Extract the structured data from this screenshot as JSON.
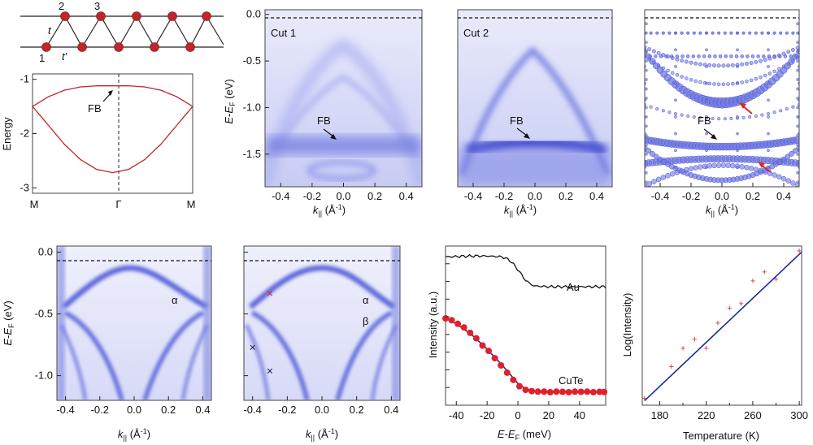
{
  "chart_data": [
    {
      "id": "lattice",
      "type": "diagram",
      "site_labels": [
        "1",
        "2",
        "3"
      ],
      "hopping_labels": [
        "t",
        "t′"
      ]
    },
    {
      "id": "flat-band-model",
      "type": "line",
      "ylabel": "Energy",
      "x_ticks": [
        "M",
        "Γ",
        "M"
      ],
      "ylim": [
        -3.1,
        -0.9
      ],
      "y_ticks": [
        -1,
        -2,
        -3
      ],
      "annotation": "FB",
      "series": [
        {
          "x": [
            0,
            0.1,
            0.2,
            0.3,
            0.4,
            0.5,
            0.6,
            0.7,
            0.8,
            0.9,
            1.0
          ],
          "values": [
            -1.5,
            -1.32,
            -1.2,
            -1.14,
            -1.12,
            -1.12,
            -1.12,
            -1.14,
            -1.2,
            -1.32,
            -1.5
          ]
        },
        {
          "x": [
            0,
            0.1,
            0.2,
            0.3,
            0.4,
            0.5,
            0.6,
            0.7,
            0.8,
            0.9,
            1.0
          ],
          "values": [
            -1.5,
            -1.85,
            -2.2,
            -2.48,
            -2.66,
            -2.72,
            -2.66,
            -2.48,
            -2.2,
            -1.85,
            -1.5
          ]
        }
      ]
    },
    {
      "id": "cut1",
      "type": "heatmap",
      "title": "Cut 1",
      "ylabel": "E-E_F (eV)",
      "xlabel": "k_|| (Å⁻¹)",
      "xlim": [
        -0.5,
        0.5
      ],
      "ylim": [
        -1.85,
        0.05
      ],
      "x_ticks": [
        "-0.4",
        "-0.2",
        "0.0",
        "0.2",
        "0.4"
      ],
      "y_ticks": [
        "0.0",
        "-0.5",
        "-1.0",
        "-1.5"
      ],
      "annotation": "FB",
      "flat_band_energy": -1.45
    },
    {
      "id": "cut2",
      "type": "heatmap",
      "title": "Cut 2",
      "xlabel": "k_|| (Å⁻¹)",
      "xlim": [
        -0.5,
        0.5
      ],
      "ylim": [
        -1.85,
        0.05
      ],
      "x_ticks": [
        "-0.4",
        "-0.2",
        "0.0",
        "0.2",
        "0.4"
      ],
      "annotation": "FB",
      "flat_band_energy": -1.45
    },
    {
      "id": "calc",
      "type": "scatter",
      "xlabel": "k_|| (Å⁻¹)",
      "xlim": [
        -0.5,
        0.5
      ],
      "ylim": [
        -1.85,
        0.05
      ],
      "x_ticks": [
        "-0.4",
        "-0.2",
        "0.0",
        "0.2",
        "0.4"
      ],
      "annotation": "FB"
    },
    {
      "id": "band-a",
      "type": "heatmap",
      "ylabel": "E-E_F (eV)",
      "xlabel": "k_|| (Å⁻¹)",
      "xlim": [
        -0.45,
        0.45
      ],
      "ylim": [
        -1.2,
        0.05
      ],
      "x_ticks": [
        "-0.4",
        "-0.2",
        "0.0",
        "0.2",
        "0.4"
      ],
      "y_ticks": [
        "0.0",
        "-0.5",
        "-1.0"
      ],
      "annotation": "α"
    },
    {
      "id": "band-b",
      "type": "heatmap",
      "xlabel": "k_|| (Å⁻¹)",
      "xlim": [
        -0.45,
        0.45
      ],
      "ylim": [
        -1.2,
        0.05
      ],
      "x_ticks": [
        "-0.4",
        "-0.2",
        "0.0",
        "0.2",
        "0.4"
      ],
      "annotations": [
        "α",
        "β"
      ],
      "markers": [
        {
          "k": -0.3,
          "e": -0.33,
          "color": "#e0202a"
        },
        {
          "k": -0.4,
          "e": -0.77,
          "color": "#1a1a4a"
        },
        {
          "k": -0.3,
          "e": -0.96,
          "color": "#1a1a4a"
        }
      ]
    },
    {
      "id": "edc",
      "type": "line",
      "ylabel": "Intensity (a.u.)",
      "xlabel": "E-E_F (meV)",
      "xlim": [
        -47,
        57
      ],
      "x_ticks": [
        -40,
        -20,
        0,
        20,
        40
      ],
      "series": [
        {
          "name": "Au",
          "color": "#111111",
          "x": [
            -47,
            -30,
            -20,
            -10,
            -5,
            0,
            5,
            10,
            20,
            40,
            57
          ],
          "values": [
            9.2,
            9.25,
            9.25,
            9.2,
            9.0,
            8.5,
            7.9,
            7.6,
            7.55,
            7.55,
            7.55
          ]
        },
        {
          "name": "CuTe",
          "color": "#1a2aa0",
          "x": [
            -47,
            -40,
            -30,
            -20,
            -10,
            0,
            5,
            10,
            20,
            30,
            40,
            57
          ],
          "values": [
            5.8,
            5.5,
            4.9,
            4.1,
            3.2,
            2.2,
            1.9,
            1.8,
            1.75,
            1.75,
            1.75,
            1.75
          ]
        },
        {
          "name": "",
          "color": "#e0202a",
          "points": true,
          "x": [
            -47,
            -43,
            -39,
            -35,
            -31,
            -27,
            -23,
            -19,
            -15,
            -11,
            -7,
            -3,
            1,
            5,
            9,
            13,
            17,
            21,
            25,
            29,
            33,
            37,
            41,
            45,
            49,
            53,
            56
          ],
          "values": [
            5.8,
            5.7,
            5.5,
            5.3,
            5.0,
            4.7,
            4.3,
            4.0,
            3.6,
            3.2,
            2.8,
            2.4,
            2.05,
            1.85,
            1.78,
            1.75,
            1.75,
            1.72,
            1.75,
            1.74,
            1.72,
            1.75,
            1.74,
            1.75,
            1.72,
            1.74,
            1.73
          ]
        }
      ]
    },
    {
      "id": "arrhenius",
      "type": "scatter",
      "ylabel": "Log(Intensity)",
      "xlabel": "Temperature (K)",
      "xlim": [
        165,
        302
      ],
      "ylim": [
        0,
        1
      ],
      "x_ticks": [
        180,
        220,
        260,
        300
      ],
      "series": [
        {
          "name": "",
          "color": "#e0202a",
          "x": [
            167,
            190,
            200,
            210,
            220,
            230,
            240,
            250,
            260,
            270,
            280,
            300
          ],
          "values": [
            0.02,
            0.23,
            0.35,
            0.41,
            0.35,
            0.52,
            0.62,
            0.65,
            0.8,
            0.86,
            0.81,
            1.0
          ]
        },
        {
          "name": "",
          "color": "#1a2aa0",
          "fit": true,
          "x": [
            167,
            302
          ],
          "values": [
            0.0,
            0.99
          ]
        }
      ]
    }
  ],
  "colors": {
    "band_dark": "#2c35c8",
    "band_light": "#e7e9fb",
    "model_line": "#c0262b",
    "site": "#c0262b",
    "calc_dot": "#6f78e0"
  }
}
